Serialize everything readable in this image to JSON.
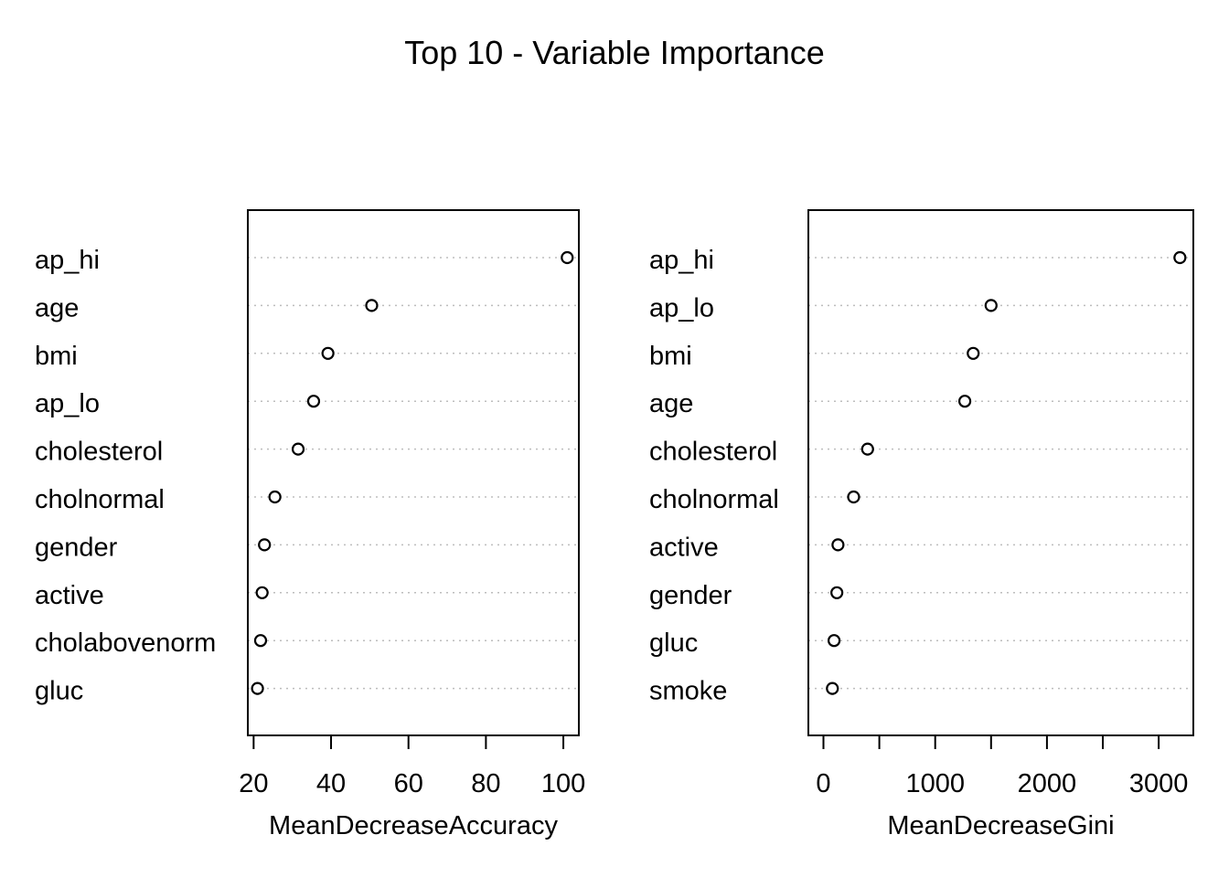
{
  "figure": {
    "title": "Top 10 - Variable Importance"
  },
  "chart_data": [
    {
      "type": "scatter",
      "variant": "dotchart",
      "title": "",
      "xlabel": "MeanDecreaseAccuracy",
      "ylabel": "",
      "categories": [
        "ap_hi",
        "age",
        "bmi",
        "ap_lo",
        "cholesterol",
        "cholnormal",
        "gender",
        "active",
        "cholabovenorm",
        "gluc"
      ],
      "values": [
        101,
        50.5,
        39.2,
        35.5,
        31.5,
        25.5,
        22.8,
        22.2,
        21.8,
        21.0
      ],
      "xlim": [
        18.5,
        104
      ],
      "xticks": [
        20,
        40,
        60,
        80,
        100
      ],
      "xtick_labels": [
        "20",
        "40",
        "60",
        "80",
        "100"
      ],
      "grid": "dotted horizontal guides"
    },
    {
      "type": "scatter",
      "variant": "dotchart",
      "title": "",
      "xlabel": "MeanDecreaseGini",
      "ylabel": "",
      "categories": [
        "ap_hi",
        "ap_lo",
        "bmi",
        "age",
        "cholesterol",
        "cholnormal",
        "active",
        "gender",
        "gluc",
        "smoke"
      ],
      "values": [
        3190,
        1500,
        1340,
        1265,
        395,
        270,
        130,
        120,
        95,
        80
      ],
      "xlim": [
        -135,
        3310
      ],
      "xticks": [
        0,
        500,
        1000,
        1500,
        2000,
        2500,
        3000
      ],
      "xtick_labels": [
        "0",
        "",
        "1000",
        "",
        "2000",
        "",
        "3000"
      ],
      "grid": "dotted horizontal guides"
    }
  ],
  "colors": {
    "background": "#ffffff",
    "foreground": "#000000",
    "guide": "#bdbdbd"
  }
}
